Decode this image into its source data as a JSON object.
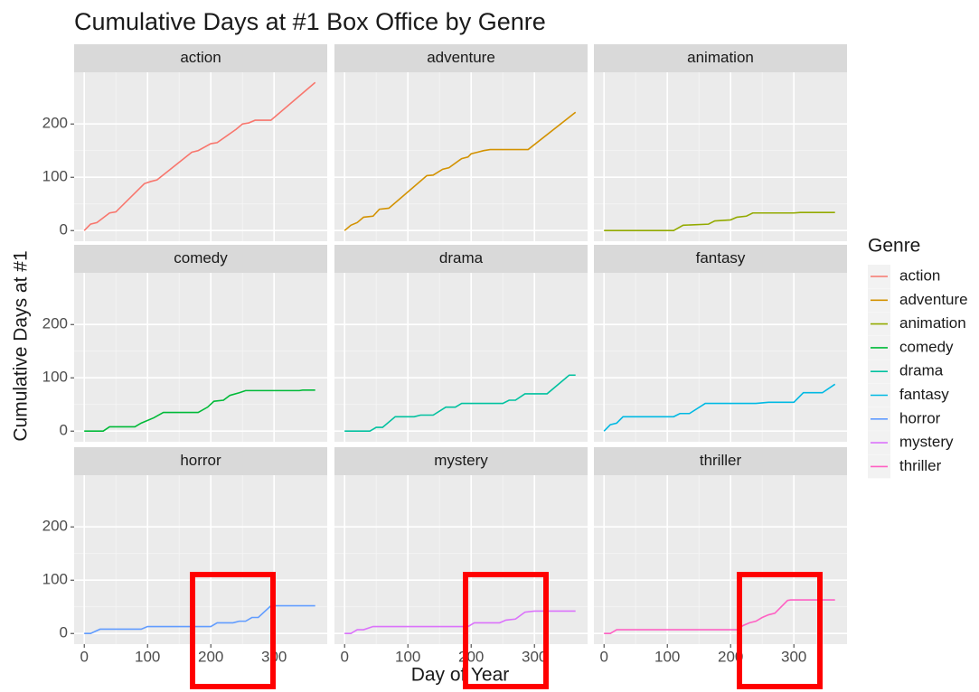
{
  "chart_data": {
    "type": "line",
    "title": "Cumulative Days at #1 Box Office by Genre",
    "x_label": "Day of Year",
    "y_label": "Cumulative Days at #1",
    "legend_title": "Genre",
    "xlim": [
      -16,
      384
    ],
    "ylim": [
      -20,
      297
    ],
    "xticks": [
      0,
      100,
      200,
      300
    ],
    "yticks": [
      0,
      100,
      200
    ],
    "grid": true,
    "series": [
      {
        "name": "action",
        "color": "#F8766D",
        "x": [
          0,
          10,
          20,
          40,
          50,
          95,
          105,
          115,
          170,
          180,
          200,
          210,
          240,
          250,
          260,
          270,
          295,
          365
        ],
        "values": [
          0,
          12,
          15,
          33,
          35,
          88,
          92,
          95,
          147,
          150,
          163,
          165,
          190,
          200,
          202,
          207,
          207,
          278
        ]
      },
      {
        "name": "adventure",
        "color": "#D39200",
        "x": [
          0,
          10,
          20,
          30,
          45,
          55,
          70,
          130,
          140,
          155,
          165,
          185,
          195,
          200,
          210,
          220,
          230,
          290,
          365
        ],
        "values": [
          0,
          10,
          15,
          25,
          27,
          40,
          42,
          103,
          104,
          115,
          118,
          135,
          138,
          144,
          147,
          150,
          152,
          152,
          222
        ]
      },
      {
        "name": "animation",
        "color": "#93AA00",
        "x": [
          0,
          110,
          125,
          165,
          175,
          200,
          210,
          225,
          235,
          300,
          310,
          365
        ],
        "values": [
          0,
          0,
          10,
          12,
          18,
          20,
          25,
          27,
          33,
          33,
          34,
          34
        ]
      },
      {
        "name": "comedy",
        "color": "#00BA38",
        "x": [
          0,
          30,
          40,
          80,
          90,
          110,
          125,
          180,
          195,
          205,
          220,
          230,
          245,
          255,
          340,
          345,
          365
        ],
        "values": [
          0,
          0,
          8,
          8,
          15,
          25,
          35,
          35,
          45,
          56,
          58,
          67,
          72,
          76,
          76,
          77,
          77
        ]
      },
      {
        "name": "drama",
        "color": "#00C19F",
        "x": [
          0,
          40,
          50,
          60,
          80,
          110,
          120,
          140,
          160,
          175,
          185,
          250,
          260,
          270,
          285,
          320,
          355,
          365
        ],
        "values": [
          0,
          0,
          7,
          7,
          27,
          27,
          30,
          30,
          45,
          45,
          52,
          52,
          58,
          58,
          70,
          70,
          105,
          105
        ]
      },
      {
        "name": "fantasy",
        "color": "#00B9E3",
        "x": [
          0,
          10,
          20,
          30,
          110,
          120,
          135,
          160,
          240,
          260,
          300,
          315,
          345,
          365
        ],
        "values": [
          0,
          12,
          15,
          27,
          27,
          33,
          33,
          52,
          52,
          54,
          54,
          72,
          72,
          88
        ]
      },
      {
        "name": "horror",
        "color": "#619CFF",
        "x": [
          0,
          10,
          25,
          90,
          100,
          200,
          210,
          235,
          245,
          255,
          265,
          275,
          295,
          365
        ],
        "values": [
          0,
          0,
          8,
          8,
          13,
          13,
          20,
          20,
          23,
          23,
          30,
          30,
          52,
          52
        ]
      },
      {
        "name": "mystery",
        "color": "#DB72FB",
        "x": [
          0,
          10,
          20,
          30,
          45,
          195,
          205,
          245,
          255,
          270,
          285,
          300,
          365
        ],
        "values": [
          0,
          0,
          7,
          7,
          13,
          13,
          20,
          20,
          25,
          27,
          40,
          42,
          42
        ]
      },
      {
        "name": "thriller",
        "color": "#FF61C3",
        "x": [
          0,
          10,
          20,
          210,
          220,
          230,
          240,
          250,
          260,
          270,
          290,
          295,
          365
        ],
        "values": [
          0,
          0,
          7,
          7,
          15,
          20,
          23,
          30,
          35,
          38,
          62,
          63,
          63
        ]
      }
    ]
  }
}
